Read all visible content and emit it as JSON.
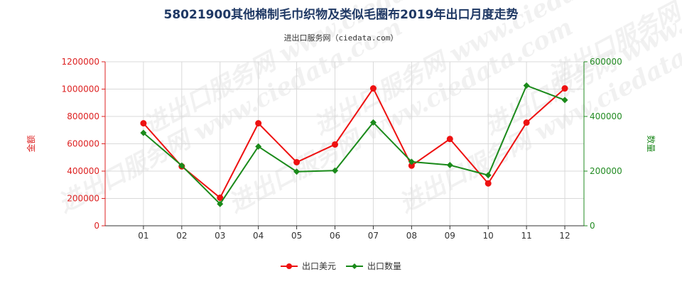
{
  "chart_data": {
    "type": "line",
    "title": "58021900其他棉制毛巾织物及类似毛圈布2019年出口月度走势",
    "subtitle": "进出口服务网（ciedata.com）",
    "categories": [
      "01",
      "02",
      "03",
      "04",
      "05",
      "06",
      "07",
      "08",
      "09",
      "10",
      "11",
      "12"
    ],
    "y_left": {
      "label": "金额",
      "min": 0,
      "max": 1200000,
      "ticks": [
        0,
        200000,
        400000,
        600000,
        800000,
        1000000,
        1200000
      ],
      "color": "#dd2222"
    },
    "y_right": {
      "label": "数量",
      "min": 0,
      "max": 600000,
      "ticks": [
        0,
        200000,
        400000,
        600000
      ],
      "color": "#228b22"
    },
    "series": [
      {
        "name": "出口美元",
        "axis": "left",
        "color": "#ee1111",
        "values": [
          750000,
          435000,
          205000,
          750000,
          465000,
          595000,
          1005000,
          440000,
          635000,
          310000,
          755000,
          1005000
        ]
      },
      {
        "name": "出口数量",
        "axis": "right",
        "color": "#1a8a1a",
        "values": [
          340000,
          220000,
          80000,
          290000,
          198000,
          202000,
          378000,
          234000,
          222000,
          185000,
          513000,
          460000
        ]
      }
    ],
    "grid": true,
    "legend_position": "bottom-center",
    "watermark": "进出口服务网 www.ciedata.com"
  }
}
